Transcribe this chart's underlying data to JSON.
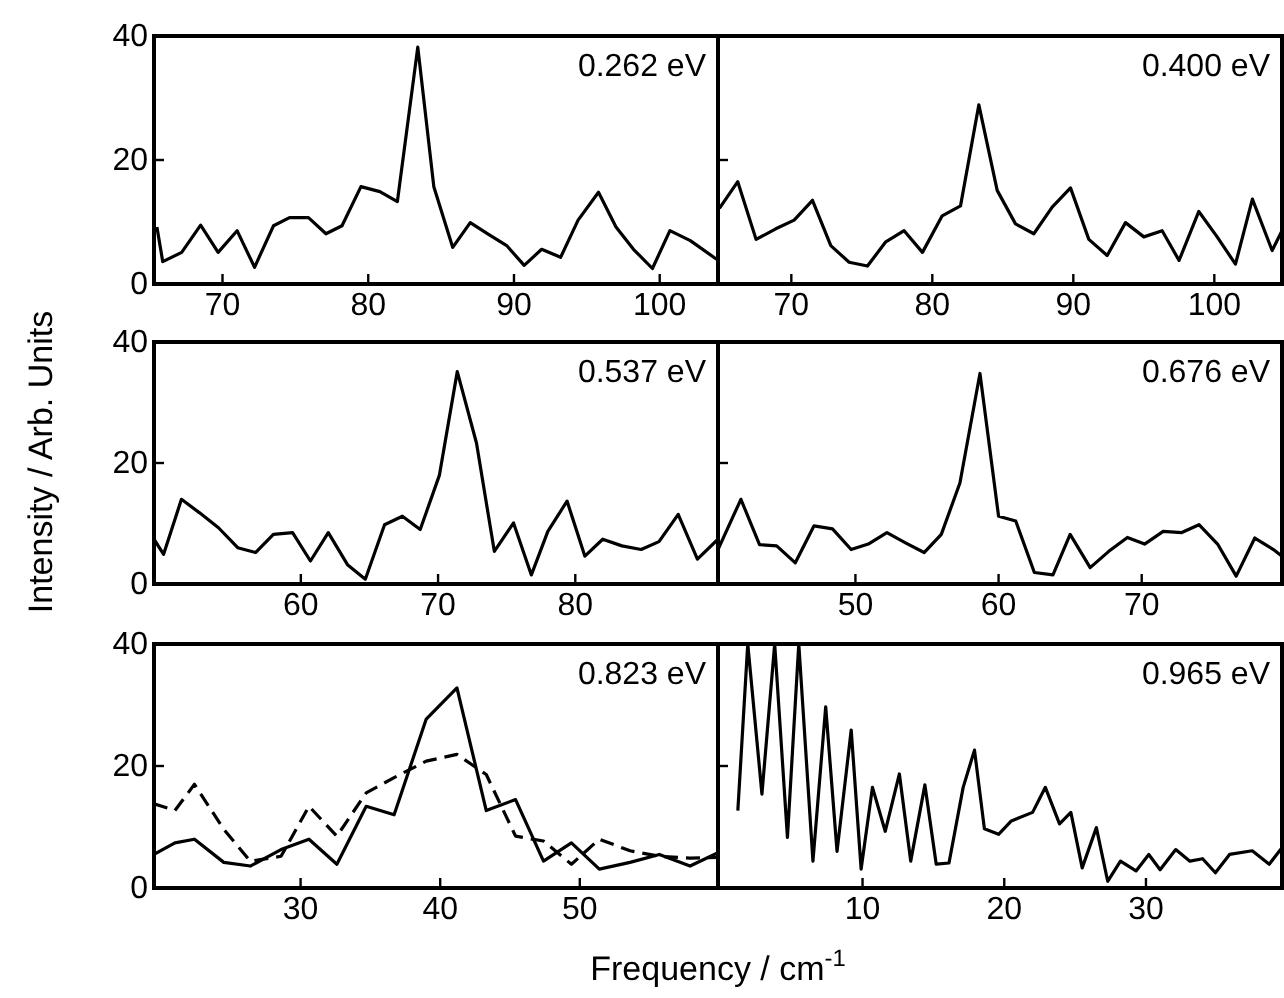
{
  "chart_data": [
    {
      "type": "line",
      "annotations": [
        "0.262 eV"
      ],
      "xlim": [
        65.3,
        104
      ],
      "xticks": [
        70,
        80,
        90,
        100
      ],
      "ylim": [
        0,
        40
      ],
      "yticks": [
        0,
        20,
        40
      ],
      "tick_labels": true,
      "series": [
        {
          "color": "#000000",
          "x": [
            65.5,
            65.9,
            67.2,
            68.5,
            69.7,
            71.0,
            72.2,
            73.5,
            74.6,
            75.9,
            77.1,
            78.2,
            79.5,
            80.8,
            82.0,
            83.4,
            84.5,
            85.8,
            87.0,
            88.2,
            89.5,
            90.7,
            91.9,
            93.2,
            94.4,
            95.8,
            97.0,
            98.2,
            99.5,
            100.7,
            102.1,
            103.9
          ],
          "values": [
            9.2,
            3.6,
            5.1,
            9.5,
            5.1,
            8.6,
            2.7,
            9.4,
            10.7,
            10.7,
            8.1,
            9.4,
            15.7,
            14.9,
            13.3,
            38.2,
            15.7,
            5.9,
            9.9,
            8.1,
            6.2,
            3.0,
            5.6,
            4.3,
            10.3,
            14.8,
            9.2,
            5.6,
            2.5,
            8.6,
            7.0,
            4.0
          ]
        }
      ]
    },
    {
      "type": "line",
      "annotations": [
        "0.400 eV"
      ],
      "xlim": [
        64.8,
        104.8
      ],
      "xticks": [
        70,
        80,
        90,
        100
      ],
      "ylim": [
        0,
        40
      ],
      "yticks": [
        0,
        20,
        40
      ],
      "tick_labels": "x",
      "series": [
        {
          "color": "#000000",
          "x": [
            64.9,
            66.2,
            67.5,
            68.9,
            70.2,
            71.5,
            72.8,
            74.1,
            75.4,
            76.7,
            78.0,
            79.3,
            80.7,
            82.0,
            83.3,
            84.6,
            85.9,
            87.2,
            88.5,
            89.8,
            91.1,
            92.4,
            93.7,
            95.0,
            96.3,
            97.5,
            98.9,
            100.2,
            101.5,
            102.7,
            104.1,
            104.8
          ],
          "values": [
            12.2,
            16.5,
            7.2,
            8.9,
            10.3,
            13.5,
            6.2,
            3.5,
            2.9,
            6.8,
            8.6,
            5.1,
            11.0,
            12.6,
            28.9,
            15.1,
            9.7,
            8.1,
            12.4,
            15.5,
            7.2,
            4.6,
            9.9,
            7.6,
            8.6,
            3.8,
            11.7,
            7.6,
            3.2,
            13.7,
            5.4,
            8.6
          ]
        }
      ]
    },
    {
      "type": "line",
      "annotations": [
        "0.537 eV"
      ],
      "ylabel": "Intensity / Arb. Units",
      "xlim": [
        49.3,
        90.4
      ],
      "xticks": [
        60,
        70,
        80
      ],
      "ylim": [
        0,
        40
      ],
      "yticks": [
        0,
        20,
        40
      ],
      "tick_labels": true,
      "series": [
        {
          "color": "#000000",
          "x": [
            49.3,
            50.0,
            51.3,
            52.6,
            54.0,
            55.4,
            56.7,
            58.0,
            59.4,
            60.7,
            62.0,
            63.4,
            64.7,
            66.1,
            67.4,
            68.7,
            70.1,
            71.4,
            72.8,
            74.1,
            75.5,
            76.8,
            78.0,
            79.4,
            80.7,
            82.0,
            83.4,
            84.8,
            86.1,
            87.5,
            88.9,
            90.4
          ],
          "values": [
            7.4,
            4.9,
            14.0,
            11.8,
            9.3,
            6.0,
            5.2,
            8.2,
            8.5,
            3.8,
            8.5,
            3.2,
            0.8,
            9.8,
            11.2,
            9.0,
            18.0,
            35.1,
            23.3,
            5.4,
            10.1,
            1.5,
            8.7,
            13.7,
            4.6,
            7.4,
            6.3,
            5.7,
            7.0,
            11.5,
            4.1,
            7.4
          ]
        }
      ]
    },
    {
      "type": "line",
      "annotations": [
        "0.676 eV"
      ],
      "xlim": [
        40.4,
        79.8
      ],
      "xticks": [
        50,
        60,
        70
      ],
      "ylim": [
        0,
        40
      ],
      "yticks": [
        0,
        20,
        40
      ],
      "tick_labels": "x",
      "series": [
        {
          "color": "#000000",
          "x": [
            40.4,
            42.0,
            43.3,
            44.5,
            45.8,
            47.1,
            48.4,
            49.7,
            50.9,
            52.2,
            53.5,
            54.8,
            56.0,
            57.3,
            58.7,
            60.0,
            61.2,
            62.5,
            63.8,
            65.0,
            66.4,
            67.7,
            69.0,
            70.2,
            71.5,
            72.8,
            74.0,
            75.3,
            76.6,
            77.9,
            79.2,
            79.8
          ],
          "values": [
            5.7,
            14.0,
            6.5,
            6.3,
            3.5,
            9.6,
            9.1,
            5.7,
            6.6,
            8.5,
            6.8,
            5.2,
            8.2,
            16.7,
            34.8,
            11.2,
            10.4,
            1.9,
            1.5,
            8.2,
            2.7,
            5.4,
            7.7,
            6.6,
            8.7,
            8.5,
            9.8,
            6.6,
            1.3,
            7.6,
            5.7,
            4.6
          ]
        }
      ]
    },
    {
      "type": "line",
      "annotations": [
        "0.823 eV"
      ],
      "xlabel": "Frequency / cm$^{-1}$",
      "xlim": [
        19.5,
        59.9
      ],
      "xticks": [
        30,
        40,
        50
      ],
      "ylim": [
        0,
        40
      ],
      "yticks": [
        0,
        20,
        40
      ],
      "tick_labels": true,
      "series": [
        {
          "color": "#000000",
          "line_style": "solid",
          "x": [
            19.5,
            21.0,
            22.4,
            24.5,
            26.4,
            28.6,
            30.6,
            32.6,
            34.7,
            36.7,
            39.0,
            41.2,
            43.3,
            45.4,
            47.4,
            49.4,
            51.4,
            53.6,
            55.7,
            57.9,
            59.9
          ],
          "values": [
            5.5,
            7.4,
            8.0,
            4.2,
            3.6,
            6.3,
            8.0,
            3.9,
            13.4,
            12.0,
            27.7,
            32.8,
            12.7,
            14.5,
            4.4,
            7.4,
            3.1,
            4.2,
            5.5,
            3.6,
            5.8
          ]
        },
        {
          "color": "#000000",
          "line_style": "dashed",
          "x": [
            19.5,
            21.0,
            22.4,
            24.5,
            26.4,
            28.6,
            30.6,
            32.6,
            34.7,
            36.7,
            39.0,
            41.2,
            43.3,
            45.4,
            47.4,
            49.4,
            51.4,
            53.6,
            55.7,
            57.9,
            59.9
          ],
          "values": [
            13.8,
            12.7,
            17.0,
            9.6,
            4.4,
            5.2,
            13.4,
            8.5,
            15.6,
            18.1,
            20.8,
            21.9,
            18.6,
            8.5,
            7.7,
            3.9,
            8.0,
            6.1,
            5.2,
            4.9,
            5.0
          ]
        }
      ]
    },
    {
      "type": "line",
      "annotations": [
        "0.965 eV"
      ],
      "xlim": [
        -0.2,
        39.6
      ],
      "xticks": [
        10,
        20,
        30
      ],
      "ylim": [
        0,
        40
      ],
      "yticks": [
        0,
        20,
        40
      ],
      "tick_labels": "x",
      "series": [
        {
          "color": "#000000",
          "x": [
            1.2,
            1.9,
            2.9,
            3.8,
            4.7,
            5.5,
            6.5,
            7.4,
            8.2,
            9.2,
            9.9,
            10.7,
            11.6,
            12.6,
            13.4,
            14.4,
            15.2,
            16.1,
            17.1,
            17.9,
            18.6,
            19.6,
            20.5,
            22.0,
            22.9,
            23.9,
            24.7,
            25.5,
            26.5,
            27.3,
            28.2,
            29.3,
            30.2,
            31.0,
            32.1,
            33.1,
            34.0,
            34.9,
            35.9,
            37.5,
            38.7,
            39.6
          ],
          "values": [
            12.7,
            40,
            15.4,
            40,
            8.3,
            40,
            4.4,
            29.7,
            6.0,
            25.9,
            3.1,
            16.5,
            9.3,
            18.7,
            4.4,
            16.9,
            3.9,
            4.1,
            16.5,
            22.6,
            9.7,
            8.8,
            11.0,
            12.4,
            16.5,
            10.5,
            12.4,
            3.3,
            9.9,
            1.1,
            4.4,
            2.8,
            5.5,
            3.0,
            6.3,
            4.4,
            4.8,
            2.5,
            5.5,
            6.1,
            3.9,
            6.6
          ]
        }
      ]
    }
  ]
}
